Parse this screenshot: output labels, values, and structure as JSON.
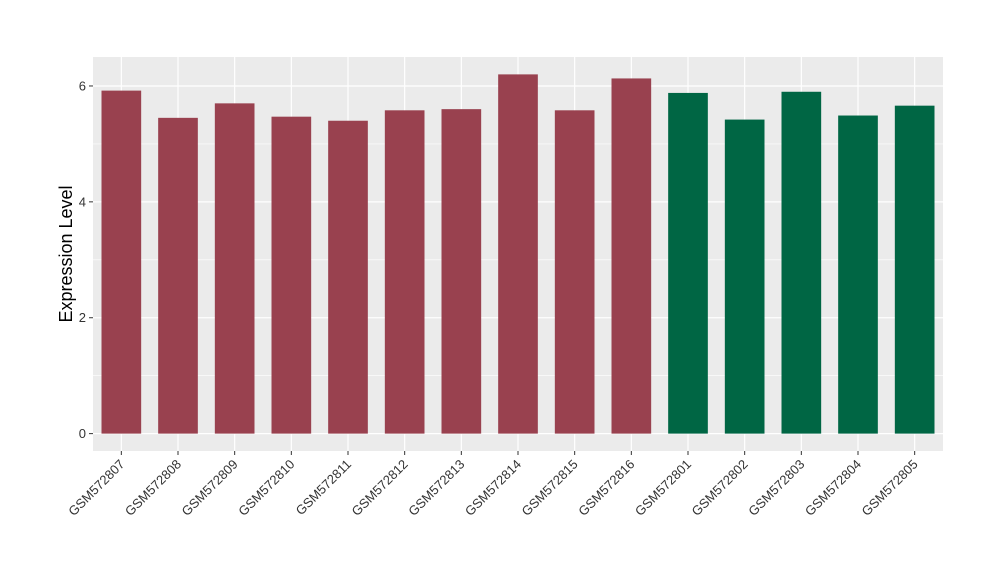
{
  "chart_data": {
    "type": "bar",
    "title": "",
    "xlabel": "",
    "ylabel": "Expression Level",
    "ylim": [
      -0.3,
      6.5
    ],
    "yticks": [
      0,
      2,
      4,
      6
    ],
    "grid": true,
    "legend": "none",
    "categories": [
      "GSM572807",
      "GSM572808",
      "GSM572809",
      "GSM572810",
      "GSM572811",
      "GSM572812",
      "GSM572813",
      "GSM572814",
      "GSM572815",
      "GSM572816",
      "GSM572801",
      "GSM572802",
      "GSM572803",
      "GSM572804",
      "GSM572805"
    ],
    "values": [
      5.92,
      5.45,
      5.7,
      5.47,
      5.4,
      5.58,
      5.6,
      6.2,
      5.58,
      6.13,
      5.88,
      5.42,
      5.9,
      5.49,
      5.66
    ],
    "bar_colors": [
      "#99414f",
      "#99414f",
      "#99414f",
      "#99414f",
      "#99414f",
      "#99414f",
      "#99414f",
      "#99414f",
      "#99414f",
      "#99414f",
      "#006644",
      "#006644",
      "#006644",
      "#006644",
      "#006644"
    ],
    "panel_background": "#ebebeb",
    "grid_color": "#ffffff"
  }
}
